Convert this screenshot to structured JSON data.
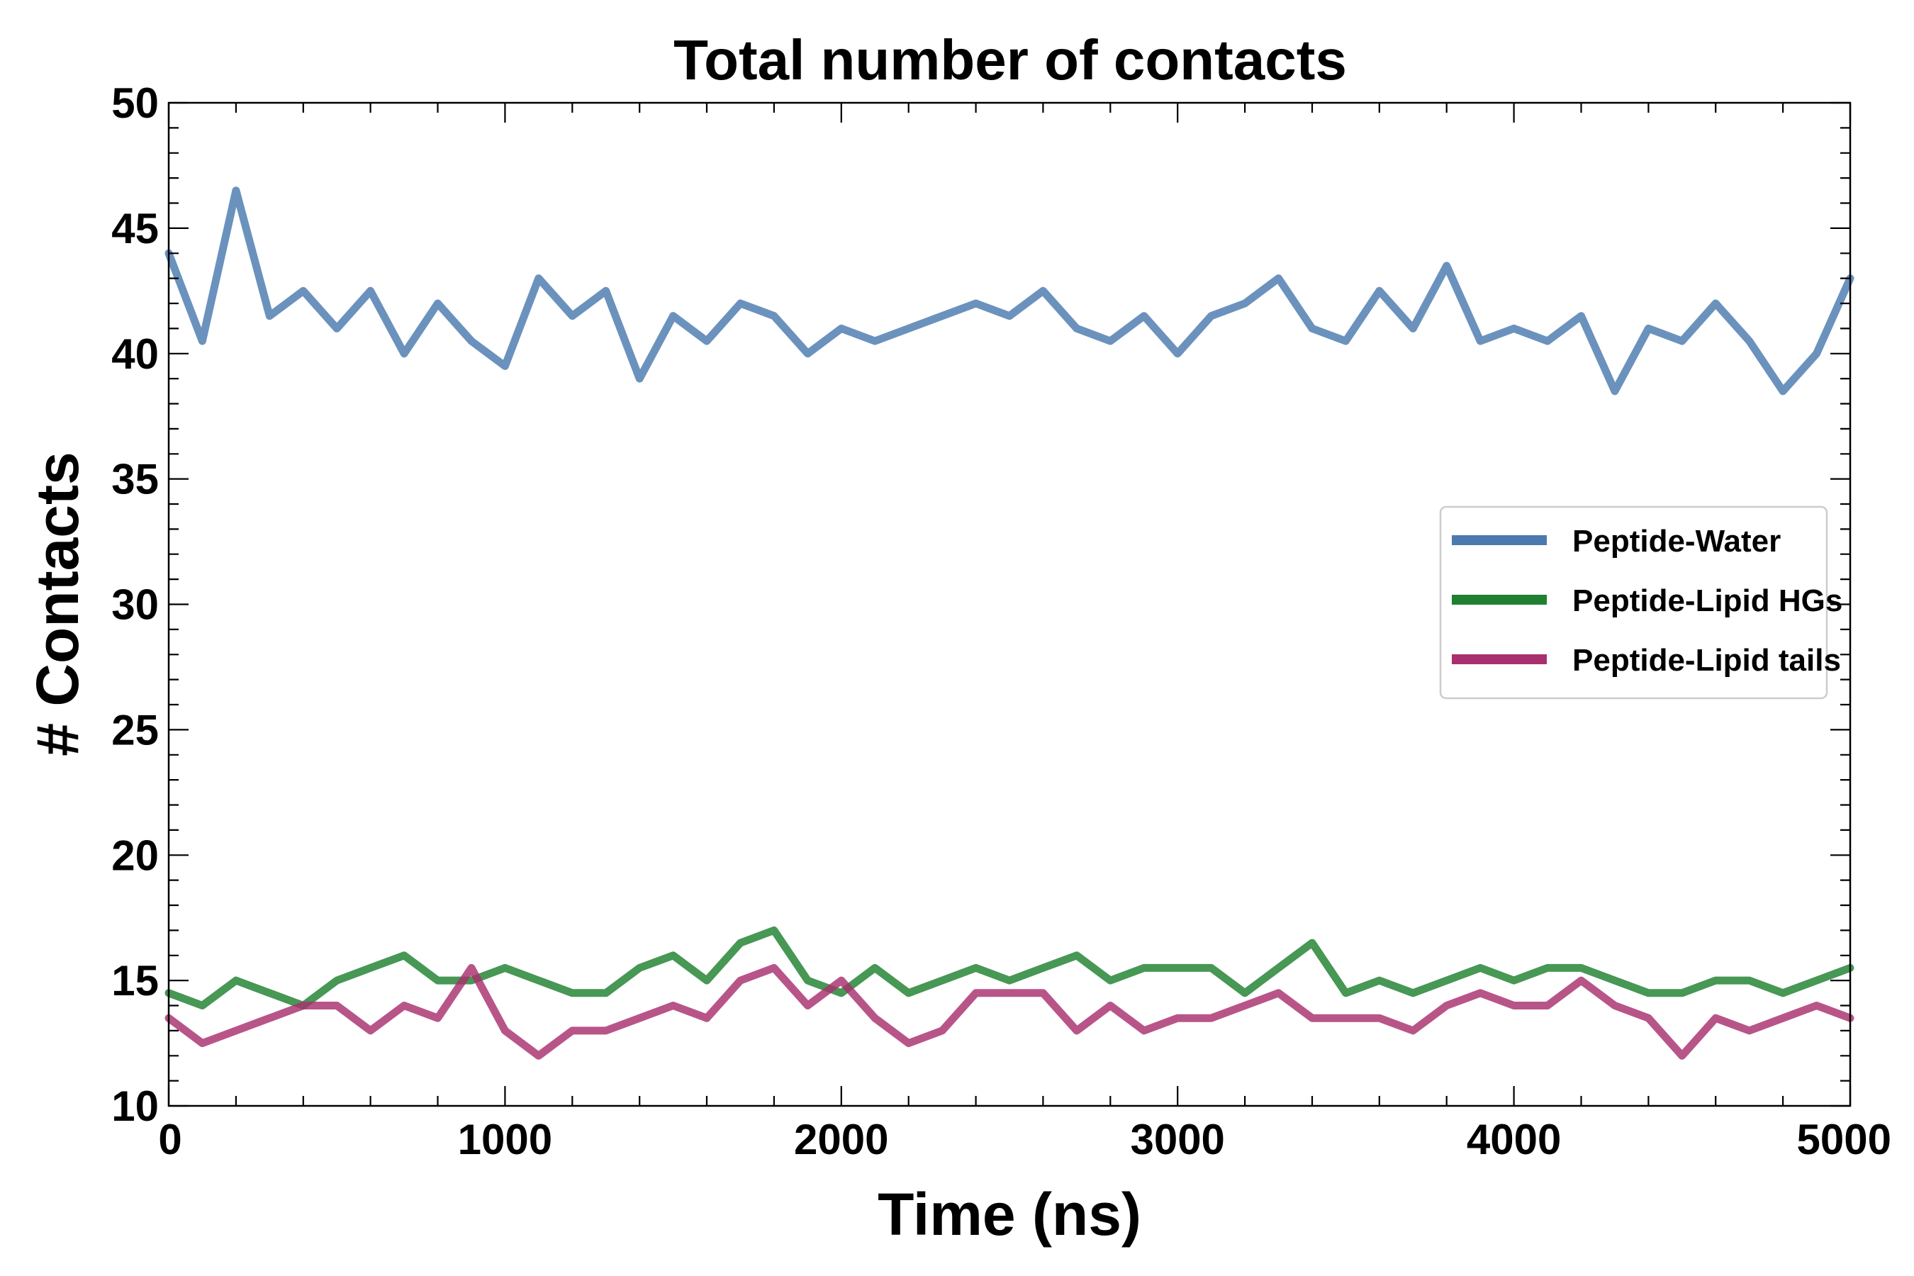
{
  "chart_data": {
    "type": "line",
    "title": "Total number of contacts",
    "xlabel": "Time (ns)",
    "ylabel": "# Contacts",
    "xlim": [
      0,
      5000
    ],
    "ylim": [
      10,
      50
    ],
    "xticks": [
      "0",
      "1000",
      "2000",
      "3000",
      "4000",
      "5000"
    ],
    "yticks": [
      "10",
      "15",
      "20",
      "25",
      "30",
      "35",
      "40",
      "45",
      "50"
    ],
    "grid": false,
    "legend_position": "center-right",
    "x": [
      0,
      100,
      200,
      300,
      400,
      500,
      600,
      700,
      800,
      900,
      1000,
      1100,
      1200,
      1300,
      1400,
      1500,
      1600,
      1700,
      1800,
      1900,
      2000,
      2100,
      2200,
      2300,
      2400,
      2500,
      2600,
      2700,
      2800,
      2900,
      3000,
      3100,
      3200,
      3300,
      3400,
      3500,
      3600,
      3700,
      3800,
      3900,
      4000,
      4100,
      4200,
      4300,
      4400,
      4500,
      4600,
      4700,
      4800,
      4900,
      5000
    ],
    "series": [
      {
        "name": "Peptide-Water",
        "color": "#4a7aae",
        "values": [
          44.0,
          40.5,
          46.5,
          41.5,
          42.5,
          41.0,
          42.5,
          40.0,
          42.0,
          40.5,
          39.5,
          43.0,
          41.5,
          42.5,
          39.0,
          41.5,
          40.5,
          42.0,
          41.5,
          40.0,
          41.0,
          40.5,
          41.0,
          41.5,
          42.0,
          41.5,
          42.5,
          41.0,
          40.5,
          41.5,
          40.0,
          41.5,
          42.0,
          43.0,
          41.0,
          40.5,
          42.5,
          41.0,
          43.5,
          40.5,
          41.0,
          40.5,
          41.5,
          38.5,
          41.0,
          40.5,
          42.0,
          40.5,
          38.5,
          40.0,
          43.0
        ]
      },
      {
        "name": "Peptide-Lipid HGs",
        "color": "#1e8030",
        "values": [
          14.5,
          14.0,
          15.0,
          14.5,
          14.0,
          15.0,
          15.5,
          16.0,
          15.0,
          15.0,
          15.5,
          15.0,
          14.5,
          14.5,
          15.5,
          16.0,
          15.0,
          16.5,
          17.0,
          15.0,
          14.5,
          15.5,
          14.5,
          15.0,
          15.5,
          15.0,
          15.5,
          16.0,
          15.0,
          15.5,
          15.5,
          15.5,
          14.5,
          15.5,
          16.5,
          14.5,
          15.0,
          14.5,
          15.0,
          15.5,
          15.0,
          15.5,
          15.5,
          15.0,
          14.5,
          14.5,
          15.0,
          15.0,
          14.5,
          15.0,
          15.5
        ]
      },
      {
        "name": "Peptide-Lipid tails",
        "color": "#a8306e",
        "values": [
          13.5,
          12.5,
          13.0,
          13.5,
          14.0,
          14.0,
          13.0,
          14.0,
          13.5,
          15.5,
          13.0,
          12.0,
          13.0,
          13.0,
          13.5,
          14.0,
          13.5,
          15.0,
          15.5,
          14.0,
          15.0,
          13.5,
          12.5,
          13.0,
          14.5,
          14.5,
          14.5,
          13.0,
          14.0,
          13.0,
          13.5,
          13.5,
          14.0,
          14.5,
          13.5,
          13.5,
          13.5,
          13.0,
          14.0,
          14.5,
          14.0,
          14.0,
          15.0,
          14.0,
          13.5,
          12.0,
          13.5,
          13.0,
          13.5,
          14.0,
          13.5
        ]
      }
    ]
  }
}
